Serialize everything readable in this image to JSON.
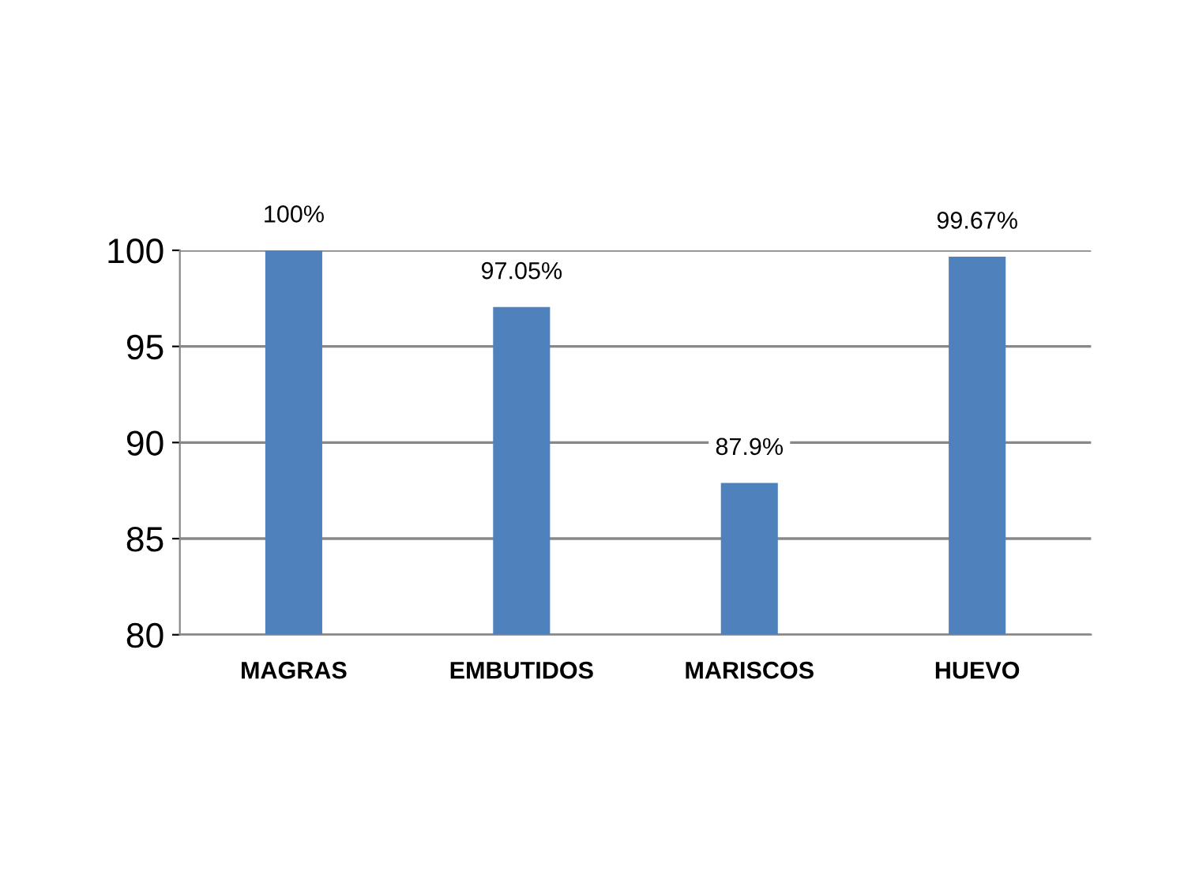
{
  "chart_data": {
    "type": "bar",
    "categories": [
      "MAGRAS",
      "EMBUTIDOS",
      "MARISCOS",
      "HUEVO"
    ],
    "values": [
      100,
      97.05,
      87.9,
      99.67
    ],
    "value_labels": [
      "100%",
      "97.05%",
      "87.9%",
      "99.67%"
    ],
    "color": "#4f81bd",
    "ylim": [
      80,
      100
    ],
    "yticks": [
      80,
      85,
      90,
      95,
      100
    ],
    "grid": "y"
  }
}
